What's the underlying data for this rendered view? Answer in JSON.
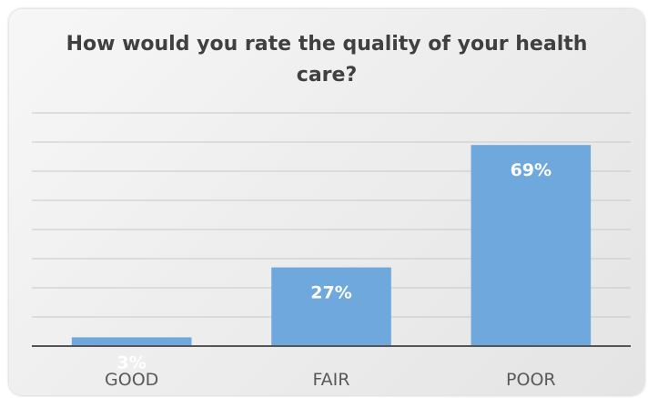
{
  "chart_data": {
    "type": "bar",
    "title": "How would you rate the quality of your health care?",
    "categories": [
      "GOOD",
      "FAIR",
      "POOR"
    ],
    "values": [
      3,
      27,
      69
    ],
    "data_labels": [
      "3%",
      "27%",
      "69%"
    ],
    "ylim": [
      0,
      80
    ],
    "grid": true,
    "legend": "none",
    "colors": {
      "bar": "#6fa8dc",
      "gridline": "#c8c8c8",
      "baseline": "#555555",
      "label": "#ffffff",
      "axis_text": "#595959"
    }
  }
}
